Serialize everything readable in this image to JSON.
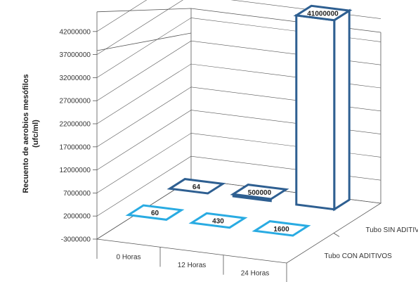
{
  "chart_data": {
    "type": "bar",
    "categories": [
      "0 Horas",
      "12 Horas",
      "24 Horas"
    ],
    "series": [
      {
        "name": "Tubo CON ADITIVOS",
        "values": [
          60,
          430,
          1600
        ],
        "value_labels": [
          "60",
          "430",
          "1600"
        ]
      },
      {
        "name": "Tubo SIN ADITIVOS",
        "values": [
          64,
          500000,
          41000000
        ],
        "value_labels": [
          "64",
          "500000",
          "41000000"
        ]
      }
    ],
    "ylabel_lines": [
      "Recuento de aerobios mesófilos",
      "(ufc/ml)"
    ],
    "y_ticks": [
      -3000000,
      2000000,
      7000000,
      12000000,
      17000000,
      22000000,
      27000000,
      32000000,
      37000000,
      42000000
    ],
    "y_tick_labels": [
      "-3000000",
      "2000000",
      "7000000",
      "12000000",
      "17000000",
      "22000000",
      "27000000",
      "32000000",
      "37000000",
      "42000000"
    ],
    "ylim": [
      -3000000,
      47000000
    ],
    "grid": true,
    "colors": {
      "Tubo CON ADITIVOS": "#29abe2",
      "Tubo SIN ADITIVOS": "#2e5f91",
      "axis": "#555555",
      "text": "#333333"
    }
  }
}
